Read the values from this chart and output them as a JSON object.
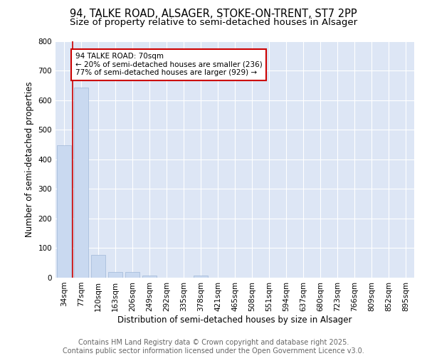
{
  "title": "94, TALKE ROAD, ALSAGER, STOKE-ON-TRENT, ST7 2PP",
  "subtitle": "Size of property relative to semi-detached houses in Alsager",
  "xlabel": "Distribution of semi-detached houses by size in Alsager",
  "ylabel": "Number of semi-detached properties",
  "categories": [
    "34sqm",
    "77sqm",
    "120sqm",
    "163sqm",
    "206sqm",
    "249sqm",
    "292sqm",
    "335sqm",
    "378sqm",
    "421sqm",
    "465sqm",
    "508sqm",
    "551sqm",
    "594sqm",
    "637sqm",
    "680sqm",
    "723sqm",
    "766sqm",
    "809sqm",
    "852sqm",
    "895sqm"
  ],
  "values": [
    448,
    643,
    78,
    19,
    19,
    8,
    0,
    0,
    8,
    0,
    0,
    0,
    0,
    0,
    0,
    0,
    0,
    0,
    0,
    0,
    0
  ],
  "bar_color": "#c9d9f0",
  "bar_edge_color": "#a0b8d8",
  "red_line_x": 1.0,
  "annotation_text": "94 TALKE ROAD: 70sqm\n← 20% of semi-detached houses are smaller (236)\n77% of semi-detached houses are larger (929) →",
  "annotation_box_color": "#ffffff",
  "annotation_box_edge": "#cc0000",
  "red_line_color": "#cc0000",
  "footer_text": "Contains HM Land Registry data © Crown copyright and database right 2025.\nContains public sector information licensed under the Open Government Licence v3.0.",
  "ylim": [
    0,
    800
  ],
  "yticks": [
    0,
    100,
    200,
    300,
    400,
    500,
    600,
    700,
    800
  ],
  "bg_color": "#dde6f5",
  "fig_bg_color": "#ffffff",
  "title_fontsize": 10.5,
  "subtitle_fontsize": 9.5,
  "footer_fontsize": 7,
  "axis_label_fontsize": 8.5,
  "tick_fontsize": 7.5
}
